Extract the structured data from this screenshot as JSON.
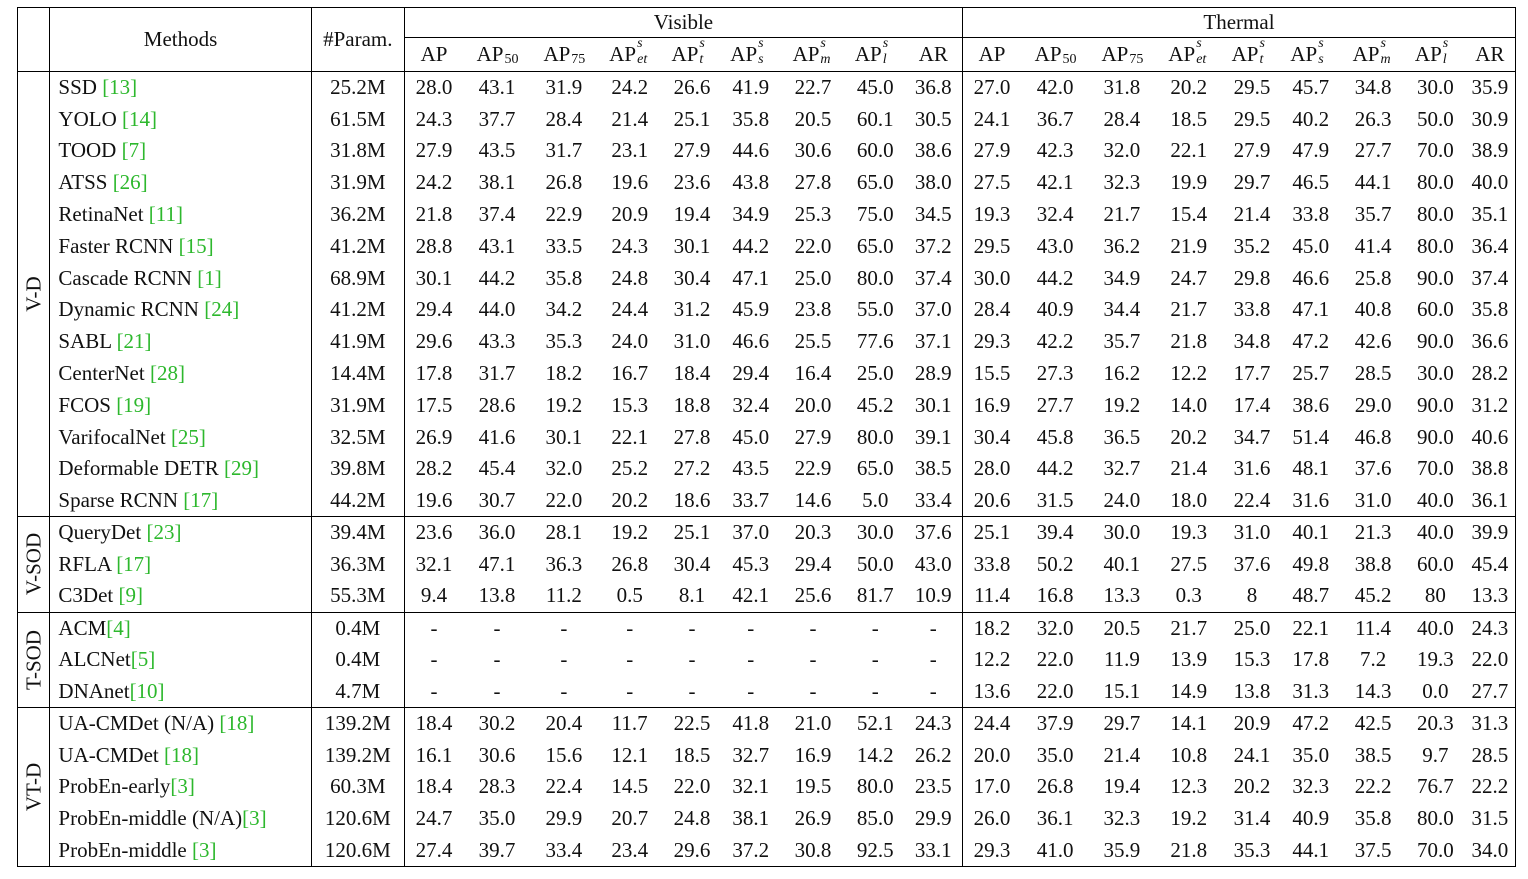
{
  "headers": {
    "methods": "Methods",
    "param": "#Param.",
    "visible": "Visible",
    "thermal": "Thermal",
    "metrics": [
      {
        "base": "AP",
        "sub": "",
        "sup": ""
      },
      {
        "base": "AP",
        "sub": "50",
        "sup": ""
      },
      {
        "base": "AP",
        "sub": "75",
        "sup": ""
      },
      {
        "base": "AP",
        "sub": "et",
        "sup": "s"
      },
      {
        "base": "AP",
        "sub": "t",
        "sup": "s"
      },
      {
        "base": "AP",
        "sub": "s",
        "sup": "s"
      },
      {
        "base": "AP",
        "sub": "m",
        "sup": "s"
      },
      {
        "base": "AP",
        "sub": "l",
        "sup": "s"
      },
      {
        "base": "AR",
        "sub": "",
        "sup": ""
      }
    ]
  },
  "groups": [
    {
      "label": "V-D",
      "rows": [
        {
          "name": "SSD ",
          "ref": "[13]",
          "param": "25.2M",
          "vis": [
            "28.0",
            "43.1",
            "31.9",
            "24.2",
            "26.6",
            "41.9",
            "22.7",
            "45.0",
            "36.8"
          ],
          "thm": [
            "27.0",
            "42.0",
            "31.8",
            "20.2",
            "29.5",
            "45.7",
            "34.8",
            "30.0",
            "35.9"
          ]
        },
        {
          "name": "YOLO ",
          "ref": "[14]",
          "param": "61.5M",
          "vis": [
            "24.3",
            "37.7",
            "28.4",
            "21.4",
            "25.1",
            "35.8",
            "20.5",
            "60.1",
            "30.5"
          ],
          "thm": [
            "24.1",
            "36.7",
            "28.4",
            "18.5",
            "29.5",
            "40.2",
            "26.3",
            "50.0",
            "30.9"
          ]
        },
        {
          "name": "TOOD ",
          "ref": "[7]",
          "param": "31.8M",
          "vis": [
            "27.9",
            "43.5",
            "31.7",
            "23.1",
            "27.9",
            "44.6",
            "30.6",
            "60.0",
            "38.6"
          ],
          "thm": [
            "27.9",
            "42.3",
            "32.0",
            "22.1",
            "27.9",
            "47.9",
            "27.7",
            "70.0",
            "38.9"
          ]
        },
        {
          "name": "ATSS ",
          "ref": "[26]",
          "param": "31.9M",
          "vis": [
            "24.2",
            "38.1",
            "26.8",
            "19.6",
            "23.6",
            "43.8",
            "27.8",
            "65.0",
            "38.0"
          ],
          "thm": [
            "27.5",
            "42.1",
            "32.3",
            "19.9",
            "29.7",
            "46.5",
            "44.1",
            "80.0",
            "40.0"
          ]
        },
        {
          "name": "RetinaNet ",
          "ref": "[11]",
          "param": "36.2M",
          "vis": [
            "21.8",
            "37.4",
            "22.9",
            "20.9",
            "19.4",
            "34.9",
            "25.3",
            "75.0",
            "34.5"
          ],
          "thm": [
            "19.3",
            "32.4",
            "21.7",
            "15.4",
            "21.4",
            "33.8",
            "35.7",
            "80.0",
            "35.1"
          ]
        },
        {
          "name": "Faster RCNN ",
          "ref": "[15]",
          "param": "41.2M",
          "vis": [
            "28.8",
            "43.1",
            "33.5",
            "24.3",
            "30.1",
            "44.2",
            "22.0",
            "65.0",
            "37.2"
          ],
          "thm": [
            "29.5",
            "43.0",
            "36.2",
            "21.9",
            "35.2",
            "45.0",
            "41.4",
            "80.0",
            "36.4"
          ]
        },
        {
          "name": "Cascade RCNN ",
          "ref": "[1]",
          "param": "68.9M",
          "vis": [
            "30.1",
            "44.2",
            "35.8",
            "24.8",
            "30.4",
            "47.1",
            "25.0",
            "80.0",
            "37.4"
          ],
          "thm": [
            "30.0",
            "44.2",
            "34.9",
            "24.7",
            "29.8",
            "46.6",
            "25.8",
            "90.0",
            "37.4"
          ]
        },
        {
          "name": "Dynamic RCNN ",
          "ref": "[24]",
          "param": "41.2M",
          "vis": [
            "29.4",
            "44.0",
            "34.2",
            "24.4",
            "31.2",
            "45.9",
            "23.8",
            "55.0",
            "37.0"
          ],
          "thm": [
            "28.4",
            "40.9",
            "34.4",
            "21.7",
            "33.8",
            "47.1",
            "40.8",
            "60.0",
            "35.8"
          ]
        },
        {
          "name": "SABL ",
          "ref": "[21]",
          "param": "41.9M",
          "vis": [
            "29.6",
            "43.3",
            "35.3",
            "24.0",
            "31.0",
            "46.6",
            "25.5",
            "77.6",
            "37.1"
          ],
          "thm": [
            "29.3",
            "42.2",
            "35.7",
            "21.8",
            "34.8",
            "47.2",
            "42.6",
            "90.0",
            "36.6"
          ]
        },
        {
          "name": "CenterNet ",
          "ref": "[28]",
          "param": "14.4M",
          "vis": [
            "17.8",
            "31.7",
            "18.2",
            "16.7",
            "18.4",
            "29.4",
            "16.4",
            "25.0",
            "28.9"
          ],
          "thm": [
            "15.5",
            "27.3",
            "16.2",
            "12.2",
            "17.7",
            "25.7",
            "28.5",
            "30.0",
            "28.2"
          ]
        },
        {
          "name": "FCOS ",
          "ref": "[19]",
          "param": "31.9M",
          "vis": [
            "17.5",
            "28.6",
            "19.2",
            "15.3",
            "18.8",
            "32.4",
            "20.0",
            "45.2",
            "30.1"
          ],
          "thm": [
            "16.9",
            "27.7",
            "19.2",
            "14.0",
            "17.4",
            "38.6",
            "29.0",
            "90.0",
            "31.2"
          ]
        },
        {
          "name": "VarifocalNet ",
          "ref": "[25]",
          "param": "32.5M",
          "vis": [
            "26.9",
            "41.6",
            "30.1",
            "22.1",
            "27.8",
            "45.0",
            "27.9",
            "80.0",
            "39.1"
          ],
          "thm": [
            "30.4",
            "45.8",
            "36.5",
            "20.2",
            "34.7",
            "51.4",
            "46.8",
            "90.0",
            "40.6"
          ]
        },
        {
          "name": "Deformable DETR ",
          "ref": "[29]",
          "param": "39.8M",
          "vis": [
            "28.2",
            "45.4",
            "32.0",
            "25.2",
            "27.2",
            "43.5",
            "22.9",
            "65.0",
            "38.5"
          ],
          "thm": [
            "28.0",
            "44.2",
            "32.7",
            "21.4",
            "31.6",
            "48.1",
            "37.6",
            "70.0",
            "38.8"
          ]
        },
        {
          "name": "Sparse RCNN ",
          "ref": "[17]",
          "param": "44.2M",
          "vis": [
            "19.6",
            "30.7",
            "22.0",
            "20.2",
            "18.6",
            "33.7",
            "14.6",
            "5.0",
            "33.4"
          ],
          "thm": [
            "20.6",
            "31.5",
            "24.0",
            "18.0",
            "22.4",
            "31.6",
            "31.0",
            "40.0",
            "36.1"
          ]
        }
      ]
    },
    {
      "label": "V-SOD",
      "rows": [
        {
          "name": "QueryDet ",
          "ref": "[23]",
          "param": "39.4M",
          "vis": [
            "23.6",
            "36.0",
            "28.1",
            "19.2",
            "25.1",
            "37.0",
            "20.3",
            "30.0",
            "37.6"
          ],
          "thm": [
            "25.1",
            "39.4",
            "30.0",
            "19.3",
            "31.0",
            "40.1",
            "21.3",
            "40.0",
            "39.9"
          ]
        },
        {
          "name": "RFLA ",
          "ref": "[17]",
          "param": "36.3M",
          "vis": [
            "32.1",
            "47.1",
            "36.3",
            "26.8",
            "30.4",
            "45.3",
            "29.4",
            "50.0",
            "43.0"
          ],
          "thm": [
            "33.8",
            "50.2",
            "40.1",
            "27.5",
            "37.6",
            "49.8",
            "38.8",
            "60.0",
            "45.4"
          ]
        },
        {
          "name": "C3Det ",
          "ref": "[9]",
          "param": "55.3M",
          "vis": [
            "9.4",
            "13.8",
            "11.2",
            "0.5",
            "8.1",
            "42.1",
            "25.6",
            "81.7",
            "10.9"
          ],
          "thm": [
            "11.4",
            "16.8",
            "13.3",
            "0.3",
            "8",
            "48.7",
            "45.2",
            "80",
            "13.3"
          ]
        }
      ]
    },
    {
      "label": "T-SOD",
      "rows": [
        {
          "name": "ACM",
          "ref": "[4]",
          "param": "0.4M",
          "vis": [
            "-",
            "-",
            "-",
            "-",
            "-",
            "-",
            "-",
            "-",
            "-"
          ],
          "thm": [
            "18.2",
            "32.0",
            "20.5",
            "21.7",
            "25.0",
            "22.1",
            "11.4",
            "40.0",
            "24.3"
          ]
        },
        {
          "name": "ALCNet",
          "ref": "[5]",
          "param": "0.4M",
          "vis": [
            "-",
            "-",
            "-",
            "-",
            "-",
            "-",
            "-",
            "-",
            "-"
          ],
          "thm": [
            "12.2",
            "22.0",
            "11.9",
            "13.9",
            "15.3",
            "17.8",
            "7.2",
            "19.3",
            "22.0"
          ]
        },
        {
          "name": "DNAnet",
          "ref": "[10]",
          "param": "4.7M",
          "vis": [
            "-",
            "-",
            "-",
            "-",
            "-",
            "-",
            "-",
            "-",
            "-"
          ],
          "thm": [
            "13.6",
            "22.0",
            "15.1",
            "14.9",
            "13.8",
            "31.3",
            "14.3",
            "0.0",
            "27.7"
          ]
        }
      ]
    },
    {
      "label": "VT-D",
      "rows": [
        {
          "name": "UA-CMDet (N/A) ",
          "ref": "[18]",
          "param": "139.2M",
          "vis": [
            "18.4",
            "30.2",
            "20.4",
            "11.7",
            "22.5",
            "41.8",
            "21.0",
            "52.1",
            "24.3"
          ],
          "thm": [
            "24.4",
            "37.9",
            "29.7",
            "14.1",
            "20.9",
            "47.2",
            "42.5",
            "20.3",
            "31.3"
          ]
        },
        {
          "name": "UA-CMDet ",
          "ref": "[18]",
          "param": "139.2M",
          "vis": [
            "16.1",
            "30.6",
            "15.6",
            "12.1",
            "18.5",
            "32.7",
            "16.9",
            "14.2",
            "26.2"
          ],
          "thm": [
            "20.0",
            "35.0",
            "21.4",
            "10.8",
            "24.1",
            "35.0",
            "38.5",
            "9.7",
            "28.5"
          ]
        },
        {
          "name": "ProbEn-early",
          "ref": "[3]",
          "param": "60.3M",
          "vis": [
            "18.4",
            "28.3",
            "22.4",
            "14.5",
            "22.0",
            "32.1",
            "19.5",
            "80.0",
            "23.5"
          ],
          "thm": [
            "17.0",
            "26.8",
            "19.4",
            "12.3",
            "20.2",
            "32.3",
            "22.2",
            "76.7",
            "22.2"
          ]
        },
        {
          "name": "ProbEn-middle (N/A)",
          "ref": "[3]",
          "param": "120.6M",
          "vis": [
            "24.7",
            "35.0",
            "29.9",
            "20.7",
            "24.8",
            "38.1",
            "26.9",
            "85.0",
            "29.9"
          ],
          "thm": [
            "26.0",
            "36.1",
            "32.3",
            "19.2",
            "31.4",
            "40.9",
            "35.8",
            "80.0",
            "31.5"
          ]
        },
        {
          "name": "ProbEn-middle ",
          "ref": "[3]",
          "param": "120.6M",
          "vis": [
            "27.4",
            "39.7",
            "33.4",
            "23.4",
            "29.6",
            "37.2",
            "30.8",
            "92.5",
            "33.1"
          ],
          "thm": [
            "29.3",
            "41.0",
            "35.9",
            "21.8",
            "35.3",
            "44.1",
            "37.5",
            "70.0",
            "34.0"
          ]
        }
      ]
    }
  ]
}
